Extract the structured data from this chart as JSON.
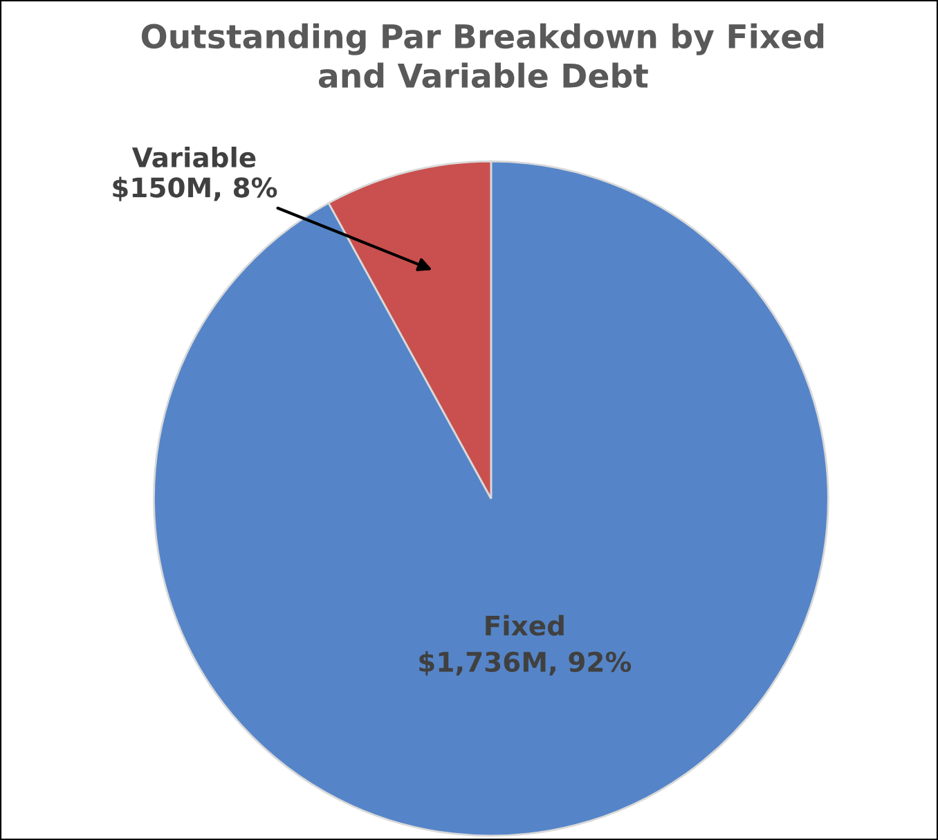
{
  "chart_data": {
    "type": "pie",
    "title": "Outstanding Par Breakdown by Fixed\nand Variable Debt",
    "categories": [
      "Fixed",
      "Variable"
    ],
    "values": [
      92,
      8
    ],
    "value_labels": [
      "$1,736M, 92%",
      "$150M, 8%"
    ],
    "colors": [
      "#5585c8",
      "#c9504e"
    ]
  }
}
